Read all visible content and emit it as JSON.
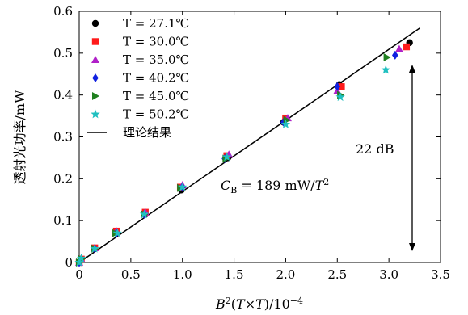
{
  "chart_data": {
    "type": "scatter",
    "xlabel": "B²(T×T)/10⁻⁴",
    "ylabel": "透射光功率/mW",
    "xlim": [
      0,
      3.5
    ],
    "ylim": [
      0,
      0.6
    ],
    "xticks": [
      "0",
      "0.5",
      "1.0",
      "1.5",
      "2.0",
      "2.5",
      "3.0",
      "3.5"
    ],
    "yticks": [
      "0",
      "0.1",
      "0.2",
      "0.3",
      "0.4",
      "0.5",
      "0.6"
    ],
    "legend_position": "top-left",
    "series": [
      {
        "name": "T = 27.1℃",
        "marker": "circle",
        "color": "#000000",
        "x": [
          0,
          0.02,
          0.15,
          0.36,
          0.64,
          0.99,
          1.44,
          1.98,
          2.52,
          3.2
        ],
        "y": [
          0,
          0.008,
          0.033,
          0.072,
          0.115,
          0.173,
          0.25,
          0.335,
          0.425,
          0.525
        ]
      },
      {
        "name": "T = 30.0℃",
        "marker": "square",
        "color": "#ff1a1a",
        "x": [
          0,
          0.02,
          0.15,
          0.36,
          0.64,
          0.98,
          1.43,
          2.0,
          2.54,
          3.17
        ],
        "y": [
          0,
          0.008,
          0.035,
          0.075,
          0.12,
          0.18,
          0.255,
          0.345,
          0.42,
          0.515
        ]
      },
      {
        "name": "T = 35.0℃",
        "marker": "triangle",
        "color": "#b020c8",
        "x": [
          0,
          0.02,
          0.15,
          0.36,
          0.64,
          1.0,
          1.45,
          2.02,
          2.5,
          3.1
        ],
        "y": [
          0,
          0.008,
          0.035,
          0.075,
          0.12,
          0.185,
          0.258,
          0.345,
          0.41,
          0.51
        ]
      },
      {
        "name": "T = 40.2℃",
        "marker": "diamond",
        "color": "#1020e0",
        "x": [
          0,
          0.02,
          0.15,
          0.36,
          0.63,
          1.0,
          1.41,
          1.98,
          2.5,
          3.06
        ],
        "y": [
          0,
          0.008,
          0.033,
          0.07,
          0.115,
          0.18,
          0.248,
          0.335,
          0.42,
          0.495
        ]
      },
      {
        "name": "T = 45.0℃",
        "marker": "triangle-right",
        "color": "#208020",
        "x": [
          0,
          0.02,
          0.15,
          0.35,
          0.63,
          0.98,
          1.42,
          2.01,
          2.53,
          2.98
        ],
        "y": [
          0,
          0.008,
          0.033,
          0.07,
          0.115,
          0.178,
          0.248,
          0.34,
          0.4,
          0.49
        ]
      },
      {
        "name": "T = 50.2℃",
        "marker": "star",
        "color": "#20c0c0",
        "x": [
          0,
          0.02,
          0.15,
          0.37,
          0.63,
          1.0,
          1.43,
          2.0,
          2.53,
          2.97
        ],
        "y": [
          0,
          0.01,
          0.033,
          0.07,
          0.115,
          0.18,
          0.252,
          0.33,
          0.395,
          0.46
        ]
      }
    ],
    "theory": {
      "name": "理论结果",
      "x": [
        0,
        3.3
      ],
      "y": [
        0,
        0.56
      ],
      "color": "#000000"
    },
    "annotations": {
      "coefficient": "C_B = 189 mW/T²",
      "db_label": "22 dB"
    }
  }
}
